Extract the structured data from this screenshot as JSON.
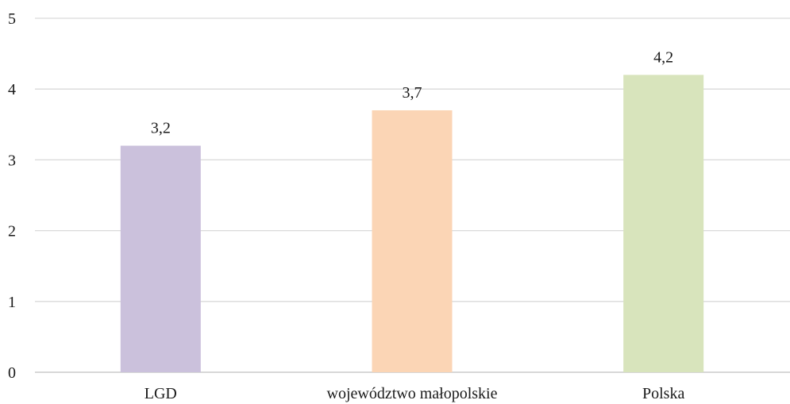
{
  "chart_data": {
    "type": "bar",
    "title": "",
    "xlabel": "",
    "ylabel": "",
    "categories": [
      "LGD",
      "województwo małopolskie",
      "Polska"
    ],
    "values": [
      3.2,
      3.7,
      4.2
    ],
    "value_labels": [
      "3,2",
      "3,7",
      "4,2"
    ],
    "colors": [
      "#cbc1dc",
      "#fbd5b5",
      "#d8e4bc"
    ],
    "ylim": [
      0,
      5
    ],
    "yticks": [
      0,
      1,
      2,
      3,
      4,
      5
    ],
    "grid": true,
    "legend": "none"
  }
}
